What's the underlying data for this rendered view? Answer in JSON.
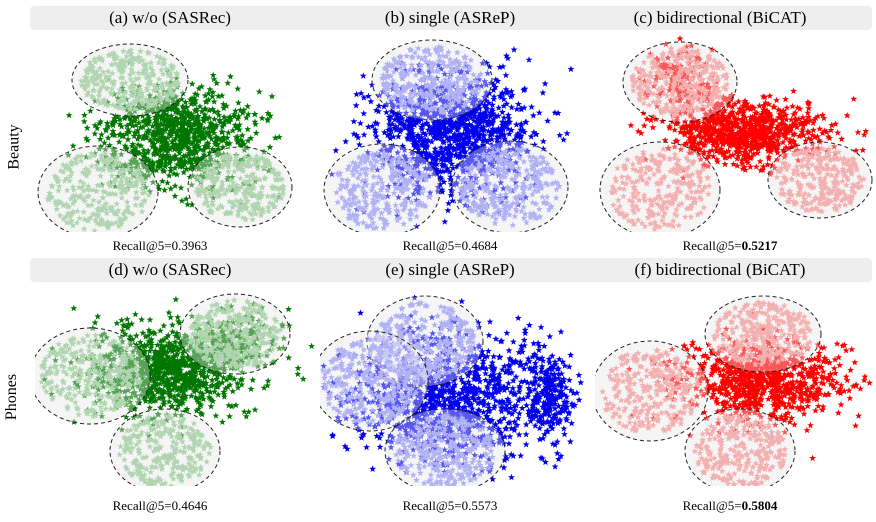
{
  "rows": [
    {
      "label": "Beauty"
    },
    {
      "label": "Phones"
    }
  ],
  "panels": [
    {
      "title": "(a) w/o (SASRec)",
      "recall_prefix": "Recall@5=",
      "recall_value": "0.3963",
      "bold": false,
      "color": "#007700",
      "light": "#8cc48c"
    },
    {
      "title": "(b) single (ASReP)",
      "recall_prefix": "Recall@5=",
      "recall_value": "0.4684",
      "bold": false,
      "color": "#0000ee",
      "light": "#8a8ef2"
    },
    {
      "title": "(c) bidirectional (BiCAT)",
      "recall_prefix": "Recall@5=",
      "recall_value": "0.5217",
      "bold": true,
      "color": "#ff0000",
      "light": "#f28a8a"
    },
    {
      "title": "(d) w/o (SASRec)",
      "recall_prefix": "Recall@5=",
      "recall_value": "0.4646",
      "bold": false,
      "color": "#007700",
      "light": "#8cc48c"
    },
    {
      "title": "(e) single (ASReP)",
      "recall_prefix": "Recall@5=",
      "recall_value": "0.5573",
      "bold": false,
      "color": "#0000ee",
      "light": "#8a8ef2"
    },
    {
      "title": "(f) bidirectional (BiCAT)",
      "recall_prefix": "Recall@5=",
      "recall_value": "0.5804",
      "bold": true,
      "color": "#ff0000",
      "light": "#f28a8a"
    }
  ],
  "chart_data": {
    "type": "scatter",
    "marker": "star",
    "grid": false,
    "legend": "none"
  }
}
